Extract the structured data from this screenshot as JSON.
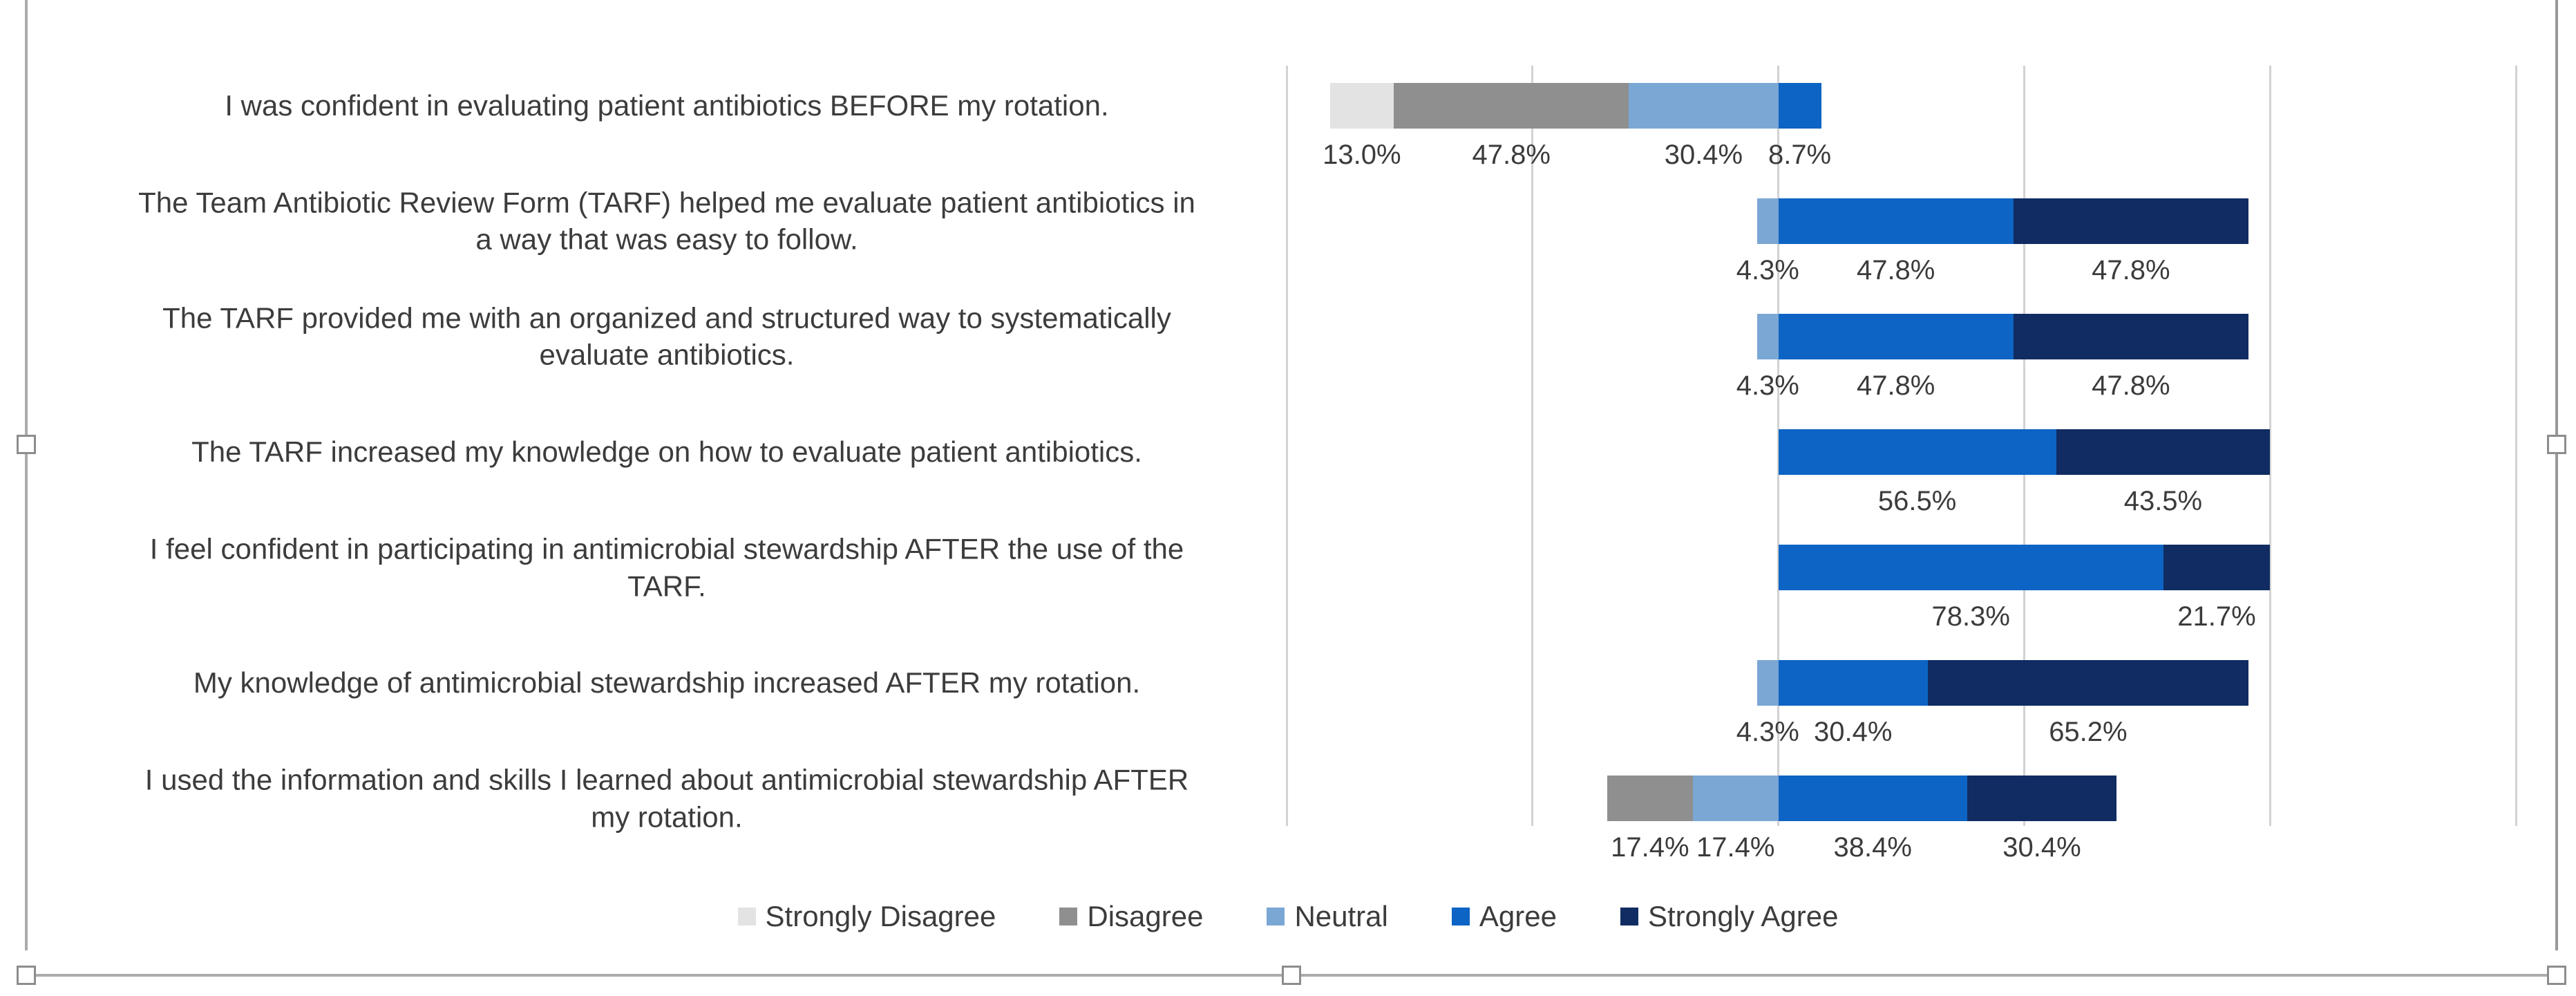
{
  "chart_data": {
    "type": "bar",
    "subtype": "horizontal-diverging-stacked",
    "title": "",
    "categories": [
      "I was confident in evaluating patient antibiotics BEFORE my rotation.",
      "The Team Antibiotic Review Form (TARF) helped me evaluate patient antibiotics in\na way that was easy to follow.",
      "The TARF provided me with an organized and structured way to systematically\nevaluate antibiotics.",
      "The TARF increased my knowledge on how to evaluate patient antibiotics.",
      "I feel confident in participating in antimicrobial stewardship AFTER the use of the\nTARF.",
      "My knowledge of antimicrobial stewardship increased AFTER my rotation.",
      "I used the information and skills I learned about antimicrobial stewardship AFTER\nmy rotation."
    ],
    "series": [
      {
        "name": "Strongly Disagree",
        "side": "negative",
        "color": "#e3e3e3",
        "values": [
          13.0,
          null,
          null,
          null,
          null,
          null,
          null
        ],
        "labels": [
          "13.0%",
          null,
          null,
          null,
          null,
          null,
          null
        ]
      },
      {
        "name": "Disagree",
        "side": "negative",
        "color": "#8f8f8f",
        "values": [
          47.8,
          null,
          null,
          null,
          null,
          null,
          17.4
        ],
        "labels": [
          "47.8%",
          null,
          null,
          null,
          null,
          null,
          "17.4%"
        ]
      },
      {
        "name": "Neutral",
        "side": "negative",
        "color": "#7ba7d4",
        "values": [
          30.4,
          4.3,
          4.3,
          null,
          null,
          4.3,
          17.4
        ],
        "labels": [
          "30.4%",
          "4.3%",
          "4.3%",
          null,
          null,
          "4.3%",
          "17.4%"
        ]
      },
      {
        "name": "Agree",
        "side": "positive",
        "color": "#0d64c4",
        "values": [
          8.7,
          47.8,
          47.8,
          56.5,
          78.3,
          30.4,
          38.4
        ],
        "labels": [
          "8.7%",
          "47.8%",
          "47.8%",
          "56.5%",
          "78.3%",
          "30.4%",
          "38.4%"
        ]
      },
      {
        "name": "Strongly Agree",
        "side": "positive",
        "color": "#102c62",
        "values": [
          null,
          47.8,
          47.8,
          43.5,
          21.7,
          65.2,
          30.4
        ],
        "labels": [
          null,
          "47.8%",
          "47.8%",
          "43.5%",
          "21.7%",
          "65.2%",
          "30.4%"
        ]
      }
    ],
    "axis": {
      "min": -100,
      "max": 150,
      "gridline_step": 50,
      "tick_labels_shown": false,
      "grid": true
    },
    "value_suffix": "%",
    "legend_position": "bottom"
  }
}
